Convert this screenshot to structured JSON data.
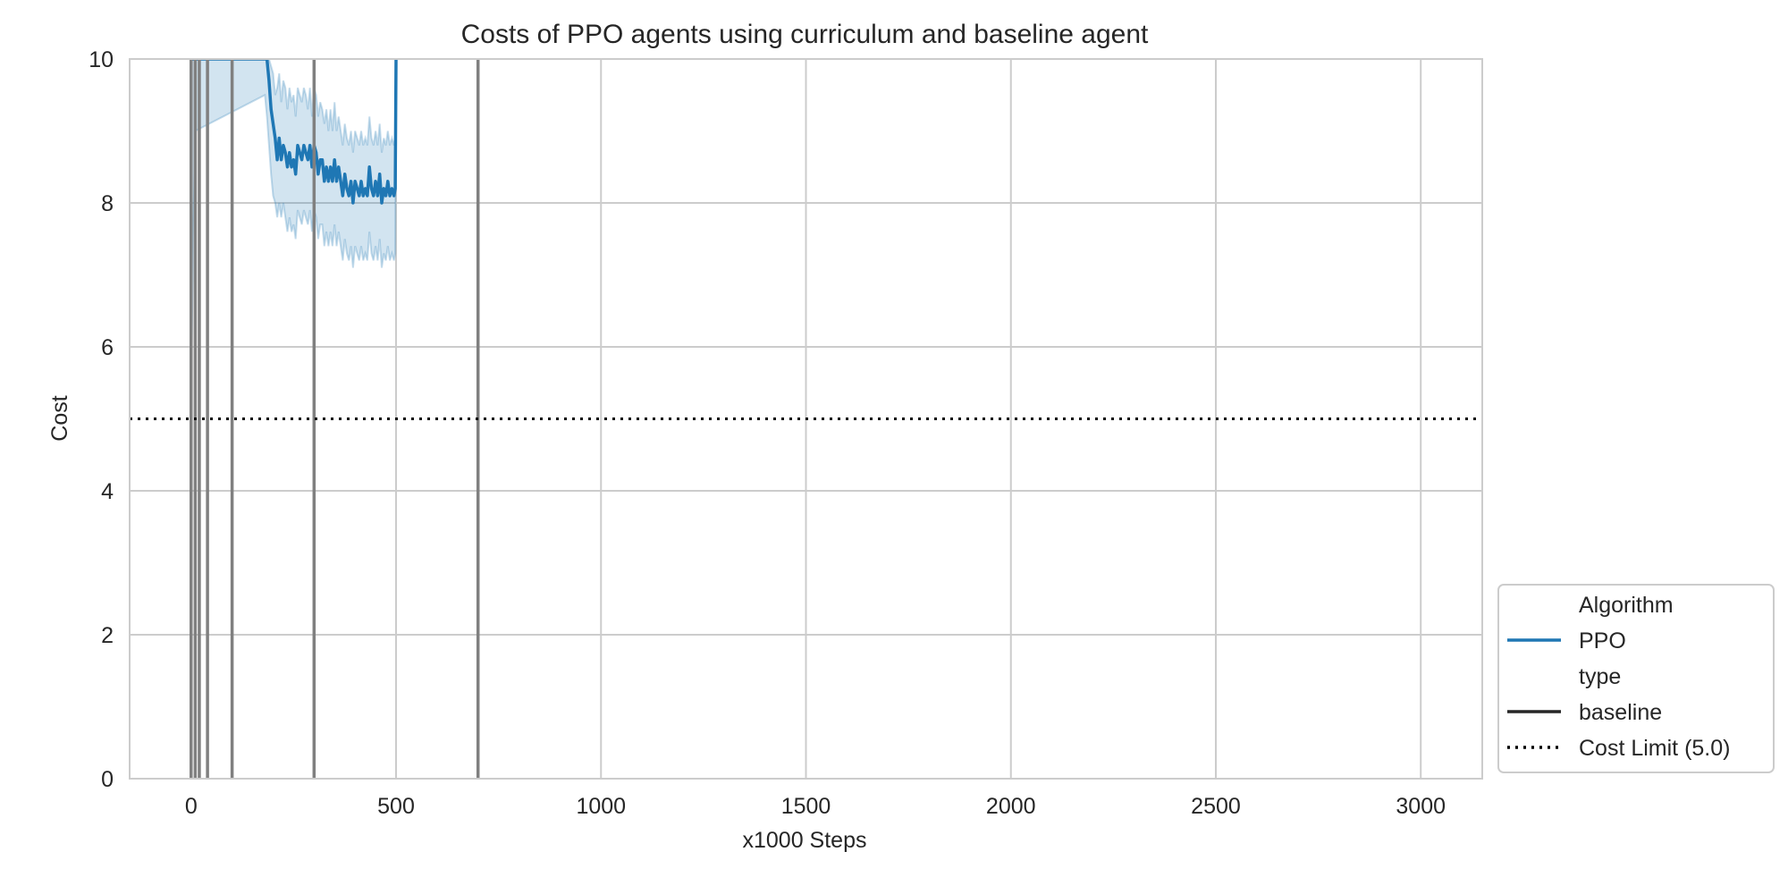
{
  "chart_data": {
    "type": "line",
    "title": "Costs of PPO agents using curriculum and baseline agent",
    "xlabel": "x1000 Steps",
    "ylabel": "Cost",
    "xlim": [
      -150,
      3150
    ],
    "ylim": [
      0,
      10
    ],
    "x_ticks": [
      0,
      500,
      1000,
      1500,
      2000,
      2500,
      3000
    ],
    "y_ticks": [
      0,
      2,
      4,
      6,
      8,
      10
    ],
    "x_tick_labels": [
      "0",
      "500",
      "1000",
      "1500",
      "2000",
      "2500",
      "3000"
    ],
    "y_tick_labels": [
      "0",
      "2",
      "4",
      "6",
      "8",
      "10"
    ],
    "grid": true,
    "legend_position": "outside-bottom-right",
    "series": [
      {
        "name": "PPO",
        "style": "solid",
        "color": "#1f77b4",
        "band_color": "#1f77b4",
        "x": [
          0,
          5,
          10,
          180,
          185,
          190,
          195,
          200,
          205,
          210,
          215,
          220,
          225,
          230,
          235,
          240,
          245,
          250,
          255,
          260,
          265,
          270,
          275,
          280,
          285,
          290,
          295,
          300,
          305,
          310,
          315,
          320,
          325,
          330,
          335,
          340,
          345,
          350,
          355,
          360,
          365,
          370,
          375,
          380,
          385,
          390,
          395,
          400,
          405,
          410,
          415,
          420,
          425,
          430,
          435,
          440,
          445,
          450,
          455,
          460,
          465,
          470,
          475,
          480,
          485,
          490,
          495,
          498,
          500
        ],
        "y": [
          10.0,
          10.0,
          10.0,
          10.3,
          10.0,
          9.7,
          9.3,
          9.1,
          8.9,
          8.6,
          8.9,
          8.6,
          8.8,
          8.7,
          8.5,
          8.7,
          8.5,
          8.6,
          8.4,
          8.8,
          8.7,
          8.6,
          8.8,
          8.7,
          8.6,
          8.8,
          8.5,
          8.8,
          8.7,
          8.4,
          8.6,
          8.6,
          8.3,
          8.5,
          8.3,
          8.5,
          8.3,
          8.6,
          8.3,
          8.5,
          8.3,
          8.1,
          8.4,
          8.2,
          8.1,
          8.3,
          8.0,
          8.3,
          8.2,
          8.1,
          8.3,
          8.1,
          8.2,
          8.1,
          8.5,
          8.2,
          8.1,
          8.3,
          8.1,
          8.4,
          8.0,
          8.2,
          8.1,
          8.3,
          8.1,
          8.2,
          8.1,
          8.2,
          10.0
        ],
        "y_upper": [
          10.0,
          10.0,
          10.0,
          10.0,
          10.0,
          10.0,
          9.9,
          9.8,
          9.5,
          9.6,
          9.8,
          9.4,
          9.7,
          9.6,
          9.3,
          9.6,
          9.4,
          9.5,
          9.2,
          9.6,
          9.5,
          9.4,
          9.6,
          9.5,
          9.3,
          9.6,
          9.2,
          9.6,
          9.5,
          9.2,
          9.4,
          9.3,
          9.1,
          9.3,
          9.0,
          9.3,
          9.0,
          9.4,
          9.0,
          9.2,
          9.0,
          8.8,
          9.1,
          8.9,
          8.8,
          9.0,
          8.7,
          9.0,
          8.9,
          8.8,
          9.0,
          8.8,
          8.9,
          8.8,
          9.2,
          8.9,
          8.8,
          9.0,
          8.8,
          9.1,
          8.7,
          8.9,
          8.8,
          9.0,
          8.8,
          8.9,
          8.8,
          8.9,
          10.0
        ],
        "y_lower": [
          5.4,
          7.5,
          9.0,
          9.5,
          9.2,
          8.8,
          8.4,
          8.1,
          8.0,
          7.8,
          8.0,
          7.8,
          8.0,
          7.8,
          7.6,
          7.8,
          7.6,
          7.7,
          7.5,
          7.9,
          7.8,
          7.7,
          7.9,
          7.8,
          7.7,
          7.9,
          7.6,
          7.9,
          7.8,
          7.5,
          7.7,
          7.7,
          7.4,
          7.6,
          7.4,
          7.6,
          7.4,
          7.7,
          7.4,
          7.6,
          7.4,
          7.2,
          7.5,
          7.3,
          7.2,
          7.4,
          7.1,
          7.4,
          7.3,
          7.2,
          7.4,
          7.2,
          7.3,
          7.2,
          7.6,
          7.3,
          7.2,
          7.4,
          7.2,
          7.5,
          7.1,
          7.3,
          7.2,
          7.4,
          7.2,
          7.3,
          7.2,
          7.3,
          10.0
        ]
      }
    ],
    "vertical_lines": {
      "color": "#808080",
      "x": [
        0,
        10,
        20,
        40,
        100,
        300,
        700
      ]
    },
    "reference_line": {
      "y": 5.0,
      "style": "dotted",
      "color": "#000000"
    },
    "legend": [
      {
        "label": "Algorithm",
        "kind": "header"
      },
      {
        "label": "PPO",
        "kind": "line",
        "style": "solid",
        "color": "#1f77b4"
      },
      {
        "label": "type",
        "kind": "header"
      },
      {
        "label": "baseline",
        "kind": "line",
        "style": "solid",
        "color": "#262626"
      },
      {
        "label": "Cost Limit (5.0)",
        "kind": "line",
        "style": "dotted",
        "color": "#000000"
      }
    ]
  }
}
